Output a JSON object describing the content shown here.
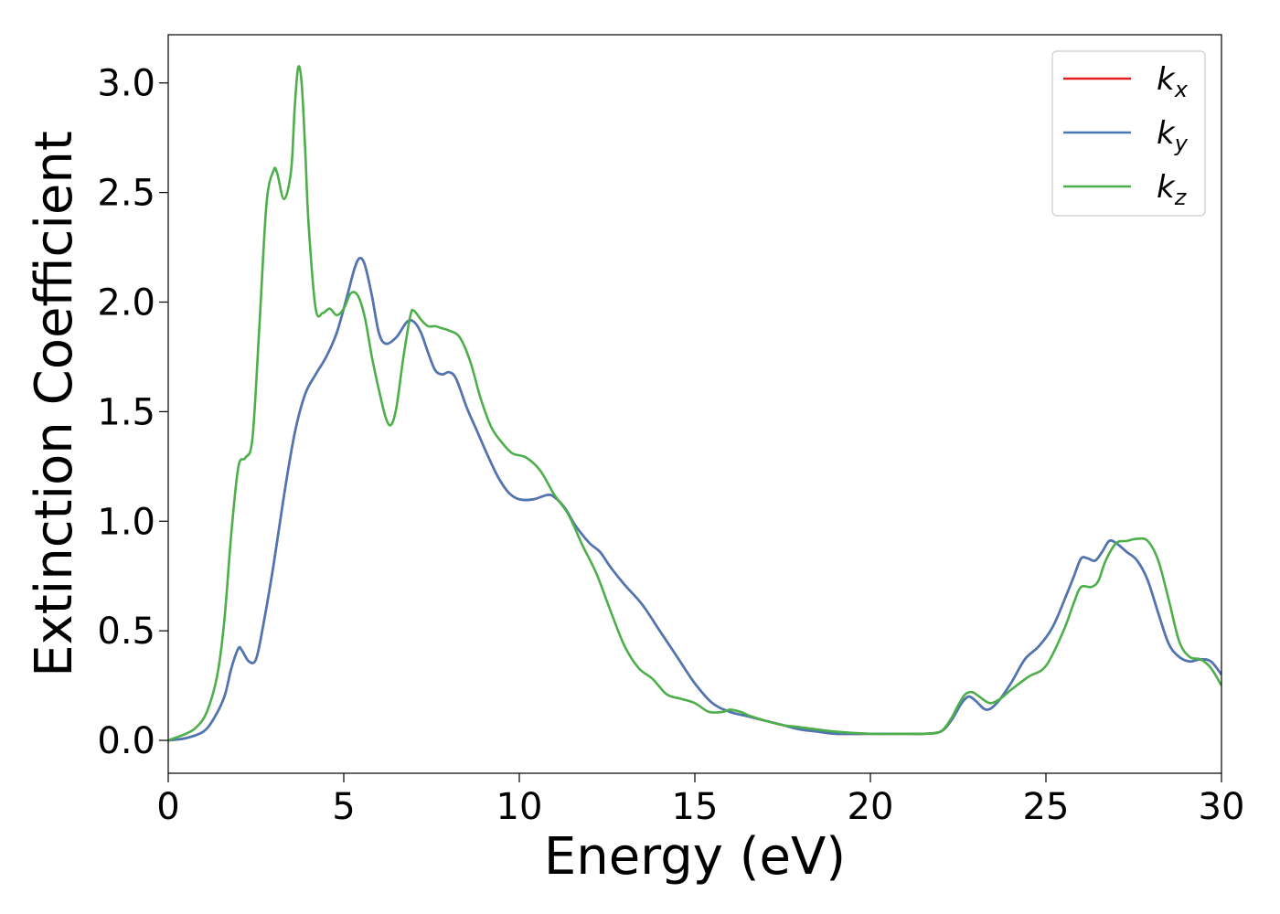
{
  "chart_data": {
    "type": "line",
    "xlabel": "Energy (eV)",
    "ylabel": "Extinction Coefficient",
    "xlim": [
      0,
      30
    ],
    "ylim": [
      -0.15,
      3.22
    ],
    "xticks": [
      0,
      5,
      10,
      15,
      20,
      25,
      30
    ],
    "xtick_labels": [
      "0",
      "5",
      "10",
      "15",
      "20",
      "25",
      "30"
    ],
    "yticks": [
      0.0,
      0.5,
      1.0,
      1.5,
      2.0,
      2.5,
      3.0
    ],
    "ytick_labels": [
      "0.0",
      "0.5",
      "1.0",
      "1.5",
      "2.0",
      "2.5",
      "3.0"
    ],
    "grid": false,
    "legend_position": "top-right",
    "series": [
      {
        "name": "k",
        "sub": "x",
        "color": "#e41a1c",
        "x": [
          0,
          0.5,
          1.0,
          1.3,
          1.6,
          1.8,
          2.0,
          2.1,
          2.3,
          2.5,
          2.7,
          3.0,
          3.3,
          3.6,
          3.9,
          4.2,
          4.5,
          4.8,
          5.1,
          5.3,
          5.45,
          5.6,
          5.8,
          6.0,
          6.2,
          6.5,
          6.8,
          7.0,
          7.2,
          7.4,
          7.6,
          7.8,
          8.0,
          8.2,
          8.5,
          8.8,
          9.1,
          9.4,
          9.7,
          10.0,
          10.4,
          10.8,
          11.0,
          11.3,
          11.6,
          12.0,
          12.3,
          12.6,
          13.0,
          13.5,
          14.0,
          14.5,
          15.0,
          15.5,
          16.0,
          16.5,
          17.0,
          17.5,
          18.0,
          18.5,
          19.0,
          20.0,
          21.0,
          21.5,
          22.0,
          22.3,
          22.6,
          22.8,
          23.0,
          23.3,
          23.6,
          24.0,
          24.4,
          24.8,
          25.2,
          25.6,
          25.8,
          26.0,
          26.2,
          26.4,
          26.6,
          26.8,
          27.0,
          27.3,
          27.6,
          27.9,
          28.2,
          28.5,
          28.8,
          29.1,
          29.4,
          29.7,
          30.0
        ],
        "y": [
          0.0,
          0.01,
          0.04,
          0.1,
          0.2,
          0.33,
          0.42,
          0.41,
          0.36,
          0.37,
          0.52,
          0.8,
          1.12,
          1.4,
          1.58,
          1.67,
          1.75,
          1.86,
          2.03,
          2.15,
          2.2,
          2.17,
          2.03,
          1.86,
          1.81,
          1.84,
          1.91,
          1.91,
          1.86,
          1.77,
          1.69,
          1.67,
          1.68,
          1.65,
          1.52,
          1.41,
          1.3,
          1.2,
          1.13,
          1.1,
          1.1,
          1.12,
          1.11,
          1.06,
          0.98,
          0.9,
          0.86,
          0.79,
          0.71,
          0.62,
          0.5,
          0.38,
          0.26,
          0.17,
          0.13,
          0.11,
          0.09,
          0.07,
          0.05,
          0.04,
          0.03,
          0.03,
          0.03,
          0.03,
          0.04,
          0.09,
          0.17,
          0.2,
          0.18,
          0.14,
          0.17,
          0.26,
          0.37,
          0.43,
          0.52,
          0.67,
          0.75,
          0.83,
          0.83,
          0.82,
          0.86,
          0.91,
          0.9,
          0.86,
          0.82,
          0.73,
          0.58,
          0.44,
          0.38,
          0.36,
          0.37,
          0.36,
          0.3
        ]
      },
      {
        "name": "k",
        "sub": "y",
        "color": "#4a78b5",
        "x": [
          0,
          0.5,
          1.0,
          1.3,
          1.6,
          1.8,
          2.0,
          2.1,
          2.3,
          2.5,
          2.7,
          3.0,
          3.3,
          3.6,
          3.9,
          4.2,
          4.5,
          4.8,
          5.1,
          5.3,
          5.45,
          5.6,
          5.8,
          6.0,
          6.2,
          6.5,
          6.8,
          7.0,
          7.2,
          7.4,
          7.6,
          7.8,
          8.0,
          8.2,
          8.5,
          8.8,
          9.1,
          9.4,
          9.7,
          10.0,
          10.4,
          10.8,
          11.0,
          11.3,
          11.6,
          12.0,
          12.3,
          12.6,
          13.0,
          13.5,
          14.0,
          14.5,
          15.0,
          15.5,
          16.0,
          16.5,
          17.0,
          17.5,
          18.0,
          18.5,
          19.0,
          20.0,
          21.0,
          21.5,
          22.0,
          22.3,
          22.6,
          22.8,
          23.0,
          23.3,
          23.6,
          24.0,
          24.4,
          24.8,
          25.2,
          25.6,
          25.8,
          26.0,
          26.2,
          26.4,
          26.6,
          26.8,
          27.0,
          27.3,
          27.6,
          27.9,
          28.2,
          28.5,
          28.8,
          29.1,
          29.4,
          29.7,
          30.0
        ],
        "y": [
          0.0,
          0.01,
          0.04,
          0.1,
          0.2,
          0.33,
          0.42,
          0.41,
          0.36,
          0.37,
          0.52,
          0.8,
          1.12,
          1.4,
          1.58,
          1.67,
          1.75,
          1.86,
          2.03,
          2.15,
          2.2,
          2.17,
          2.03,
          1.86,
          1.81,
          1.84,
          1.91,
          1.91,
          1.86,
          1.77,
          1.69,
          1.67,
          1.68,
          1.65,
          1.52,
          1.41,
          1.3,
          1.2,
          1.13,
          1.1,
          1.1,
          1.12,
          1.11,
          1.06,
          0.98,
          0.9,
          0.86,
          0.79,
          0.71,
          0.62,
          0.5,
          0.38,
          0.26,
          0.17,
          0.13,
          0.11,
          0.09,
          0.07,
          0.05,
          0.04,
          0.03,
          0.03,
          0.03,
          0.03,
          0.04,
          0.09,
          0.17,
          0.2,
          0.18,
          0.14,
          0.17,
          0.26,
          0.37,
          0.43,
          0.52,
          0.67,
          0.75,
          0.83,
          0.83,
          0.82,
          0.86,
          0.91,
          0.9,
          0.86,
          0.82,
          0.73,
          0.58,
          0.44,
          0.38,
          0.36,
          0.37,
          0.36,
          0.3
        ]
      },
      {
        "name": "k",
        "sub": "z",
        "color": "#4daf4a",
        "x": [
          0,
          0.5,
          0.8,
          1.1,
          1.4,
          1.6,
          1.8,
          2.0,
          2.2,
          2.4,
          2.6,
          2.8,
          3.0,
          3.1,
          3.3,
          3.5,
          3.6,
          3.7,
          3.8,
          3.9,
          4.0,
          4.2,
          4.4,
          4.6,
          4.8,
          5.0,
          5.2,
          5.4,
          5.6,
          5.8,
          6.0,
          6.2,
          6.35,
          6.5,
          6.7,
          6.9,
          7.0,
          7.2,
          7.4,
          7.6,
          7.8,
          8.0,
          8.3,
          8.6,
          8.9,
          9.2,
          9.5,
          9.8,
          10.2,
          10.6,
          11.0,
          11.4,
          11.8,
          12.2,
          12.6,
          13.0,
          13.4,
          13.8,
          14.2,
          14.6,
          15.0,
          15.4,
          15.8,
          16.0,
          16.3,
          16.6,
          17.0,
          17.5,
          18.0,
          19.0,
          20.0,
          21.0,
          21.5,
          22.0,
          22.3,
          22.5,
          22.7,
          22.9,
          23.1,
          23.4,
          23.7,
          24.0,
          24.5,
          25.0,
          25.5,
          25.8,
          26.0,
          26.3,
          26.5,
          26.7,
          27.0,
          27.3,
          27.6,
          27.9,
          28.2,
          28.5,
          28.8,
          29.1,
          29.4,
          29.7,
          30.0
        ],
        "y": [
          0.0,
          0.03,
          0.06,
          0.13,
          0.3,
          0.55,
          0.95,
          1.25,
          1.29,
          1.38,
          1.9,
          2.45,
          2.6,
          2.59,
          2.47,
          2.6,
          2.88,
          3.07,
          3.0,
          2.7,
          2.35,
          1.97,
          1.95,
          1.97,
          1.94,
          1.97,
          2.04,
          2.03,
          1.93,
          1.75,
          1.6,
          1.47,
          1.44,
          1.52,
          1.75,
          1.94,
          1.96,
          1.92,
          1.89,
          1.89,
          1.88,
          1.87,
          1.84,
          1.73,
          1.56,
          1.43,
          1.36,
          1.31,
          1.29,
          1.23,
          1.12,
          1.03,
          0.89,
          0.76,
          0.59,
          0.43,
          0.33,
          0.28,
          0.21,
          0.19,
          0.17,
          0.13,
          0.13,
          0.14,
          0.13,
          0.11,
          0.09,
          0.07,
          0.06,
          0.04,
          0.03,
          0.03,
          0.03,
          0.04,
          0.1,
          0.16,
          0.21,
          0.22,
          0.2,
          0.17,
          0.19,
          0.23,
          0.29,
          0.34,
          0.5,
          0.63,
          0.7,
          0.7,
          0.73,
          0.82,
          0.9,
          0.91,
          0.92,
          0.91,
          0.82,
          0.64,
          0.45,
          0.38,
          0.37,
          0.33,
          0.25
        ]
      }
    ]
  }
}
